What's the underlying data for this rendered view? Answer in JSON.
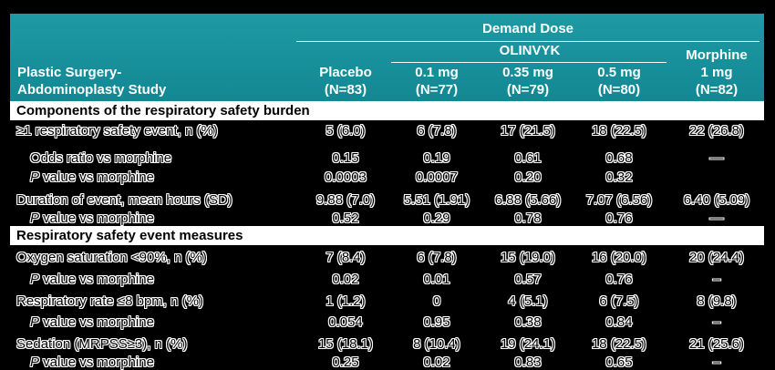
{
  "header": {
    "study_line1": "Plastic Surgery-",
    "study_line2": "Abdominoplasty Study",
    "demand_dose": "Demand Dose",
    "olinvyk": "OLINVYK",
    "columns": [
      {
        "line1": "Placebo",
        "line2": "(N=83)"
      },
      {
        "line1": "0.1 mg",
        "line2": "(N=77)"
      },
      {
        "line1": "0.35 mg",
        "line2": "(N=79)"
      },
      {
        "line1": "0.5 mg",
        "line2": "(N=80)"
      },
      {
        "line1": "1 mg",
        "line2": "(N=82)"
      }
    ],
    "morphine": "Morphine"
  },
  "sections": {
    "components": "Components of the respiratory safety burden",
    "measures": "Respiratory safety event measures"
  },
  "rows": [
    {
      "label": "≥1 respiratory safety event, n (%)",
      "values": [
        "5 (6.0)",
        "6 (7.8)",
        "17 (21.5)",
        "18 (22.5)",
        "22 (26.8)"
      ]
    },
    {
      "label": "Odds ratio vs morphine",
      "values": [
        "0.15",
        "0.19",
        "0.61",
        "0.68",
        "—"
      ]
    },
    {
      "label_p": "P",
      "label": " value vs morphine",
      "values": [
        "0.0003",
        "0.0007",
        "0.20",
        "0.32",
        ""
      ]
    },
    {
      "label": "Duration of event, mean hours (SD)",
      "values": [
        "9.88 (7.0)",
        "5.51 (1.91)",
        "6.88 (5.66)",
        "7.07 (6.56)",
        "6.40 (5.09)"
      ]
    },
    {
      "label_p": "P",
      "label": " value vs morphine",
      "values": [
        "0.52",
        "0.29",
        "0.78",
        "0.76",
        "—"
      ]
    },
    {
      "label": "Oxygen saturation <90%, n (%)",
      "values": [
        "7 (8.4)",
        "6 (7.8)",
        "15 (19.0)",
        "16 (20.0)",
        "20 (24.4)"
      ]
    },
    {
      "label_p": "P",
      "label": " value vs morphine",
      "values": [
        "0.02",
        "0.01",
        "0.57",
        "0.76",
        "–"
      ]
    },
    {
      "label": "Respiratory rate ≤8 bpm, n (%)",
      "values": [
        "1 (1.2)",
        "0",
        "4 (5.1)",
        "6 (7.5)",
        "8 (9.8)"
      ]
    },
    {
      "label_p": "P",
      "label": " value vs morphine",
      "values": [
        "0.054",
        "0.95",
        "0.38",
        "0.84",
        "–"
      ]
    },
    {
      "label": "Sedation (MRPSS≥3), n (%)",
      "values": [
        "15 (18.1)",
        "8 (10.4)",
        "19 (24.1)",
        "18 (22.5)",
        "21 (25.6)"
      ]
    },
    {
      "label_p": "P",
      "label": " value vs morphine",
      "values": [
        "0.25",
        "0.02",
        "0.83",
        "0.65",
        "–"
      ]
    }
  ]
}
